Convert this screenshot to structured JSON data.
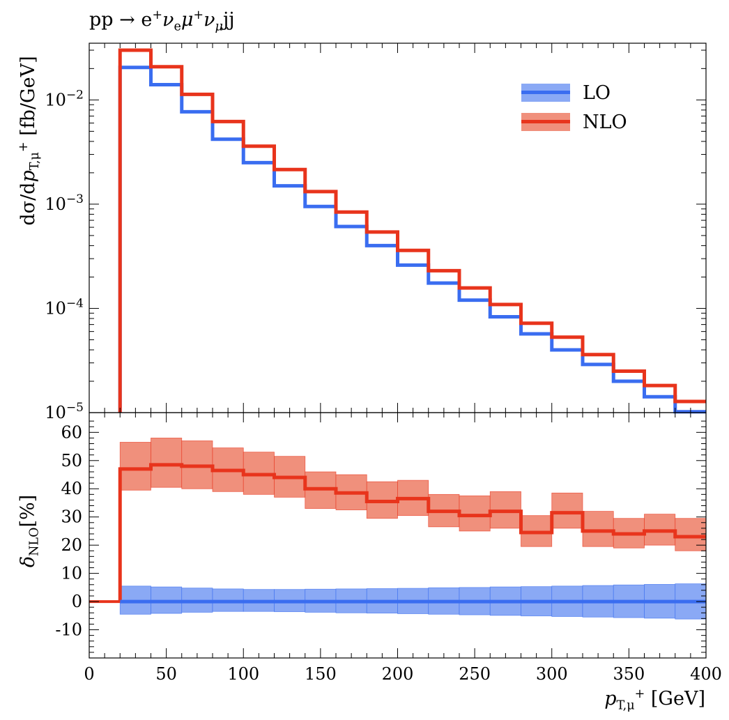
{
  "title": {
    "prefix": "pp → e",
    "sup1": "+",
    "nu": "ν",
    "nu_sub": "e",
    "mu": "μ",
    "sup2": "+",
    "nu2": "ν",
    "nu2_sub": "μ",
    "suffix": "jj"
  },
  "xlabel": {
    "var": "p",
    "sub": "T,μ",
    "sup": "+",
    "unit": " [GeV]"
  },
  "ylabel_top": {
    "pre": "dσ/d",
    "var": "p",
    "sub": "T,μ",
    "sup": "+",
    "unit": " [fb/GeV]"
  },
  "ylabel_bottom": {
    "var": "δ",
    "sub": "NLO",
    "unit": "[%]"
  },
  "colors": {
    "LO": "#3a6df0",
    "LO_band": "#8aa9f5",
    "NLO": "#e8341c",
    "NLO_band": "#f0907c"
  },
  "chart_data": [
    {
      "type": "line",
      "subtype": "step-histogram",
      "scale_y": "log",
      "xlim": [
        0,
        400
      ],
      "ylim": [
        1e-05,
        0.035
      ],
      "y_ticks": [
        {
          "value": 0.01,
          "base": "10",
          "exp": "−2"
        },
        {
          "value": 0.001,
          "base": "10",
          "exp": "−3"
        },
        {
          "value": 0.0001,
          "base": "10",
          "exp": "−4"
        },
        {
          "value": 1e-05,
          "base": "10",
          "exp": "−5"
        }
      ],
      "legend": {
        "position": "top-right",
        "entries": [
          "LO",
          "NLO"
        ]
      },
      "bin_edges": [
        20,
        40,
        60,
        80,
        100,
        120,
        140,
        160,
        180,
        200,
        220,
        240,
        260,
        280,
        300,
        320,
        340,
        360,
        380,
        400
      ],
      "series": [
        {
          "name": "LO",
          "values": [
            0.0205,
            0.014,
            0.0077,
            0.0042,
            0.0025,
            0.0015,
            0.00095,
            0.00061,
            0.0004,
            0.00026,
            0.000175,
            0.00012,
            8.3e-05,
            5.7e-05,
            4e-05,
            2.9e-05,
            2e-05,
            1.42e-05,
            1.02e-05
          ]
        },
        {
          "name": "NLO",
          "values": [
            0.03,
            0.0208,
            0.0113,
            0.0062,
            0.0036,
            0.00215,
            0.00132,
            0.00084,
            0.00054,
            0.00036,
            0.00023,
            0.000157,
            0.000109,
            7.2e-05,
            5.3e-05,
            3.6e-05,
            2.5e-05,
            1.82e-05,
            1.28e-05
          ]
        }
      ]
    },
    {
      "type": "area",
      "subtype": "step-band",
      "xlim": [
        0,
        400
      ],
      "ylim": [
        -20,
        67
      ],
      "x_ticks": [
        0,
        50,
        100,
        150,
        200,
        250,
        300,
        350,
        400
      ],
      "y_ticks": [
        -10,
        0,
        10,
        20,
        30,
        40,
        50,
        60
      ],
      "bin_edges": [
        20,
        40,
        60,
        80,
        100,
        120,
        140,
        160,
        180,
        200,
        220,
        240,
        260,
        280,
        300,
        320,
        340,
        360,
        380,
        400
      ],
      "series": [
        {
          "name": "NLO",
          "values": [
            47,
            48.5,
            48,
            46.5,
            45,
            44,
            40,
            38.5,
            35.5,
            36.5,
            32,
            30.5,
            32,
            24.5,
            31.5,
            25,
            24,
            25,
            23
          ],
          "upper": [
            56.5,
            58,
            57,
            54.5,
            53,
            51.5,
            46,
            45,
            42.5,
            43,
            38,
            37.5,
            39,
            30.5,
            38.5,
            32,
            29.5,
            31,
            29.5
          ],
          "lower": [
            39.5,
            40.5,
            40,
            39,
            38,
            37,
            33,
            32.5,
            29.5,
            30.5,
            26.5,
            25,
            26,
            19.5,
            26,
            19.5,
            19,
            20,
            18
          ]
        },
        {
          "name": "LO",
          "values": [
            0,
            0,
            0,
            0,
            0,
            0,
            0,
            0,
            0,
            0,
            0,
            0,
            0,
            0,
            0,
            0,
            0,
            0,
            0
          ],
          "upper": [
            5.5,
            5.2,
            4.8,
            4.5,
            4.3,
            4.3,
            4.4,
            4.5,
            4.6,
            4.7,
            4.9,
            5.0,
            5.2,
            5.3,
            5.5,
            5.7,
            5.9,
            6.1,
            6.3
          ],
          "lower": [
            -4.5,
            -4.2,
            -3.8,
            -3.5,
            -3.5,
            -3.6,
            -3.8,
            -4.0,
            -4.1,
            -4.3,
            -4.5,
            -4.7,
            -4.9,
            -5.1,
            -5.3,
            -5.5,
            -5.7,
            -5.9,
            -6.2
          ]
        }
      ],
      "pre_bin_line": {
        "x": [
          0,
          20
        ],
        "value": 0
      }
    }
  ]
}
